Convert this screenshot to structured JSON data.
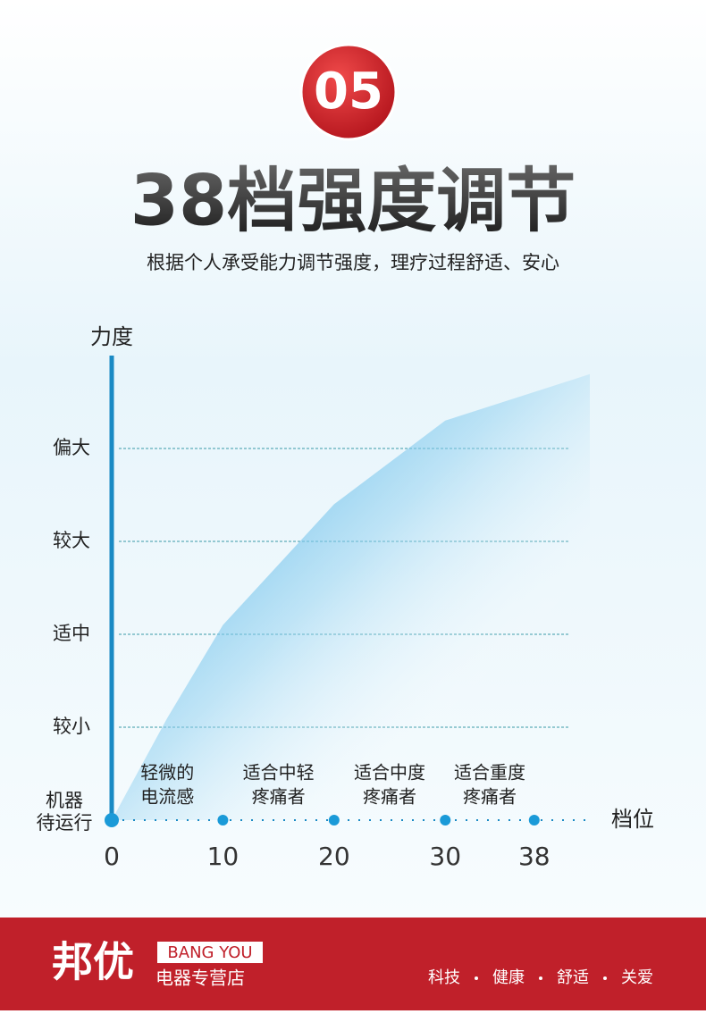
{
  "badge": "05",
  "title": "38档强度调节",
  "subtitle": "根据个人承受能力调节强度，理疗过程舒适、安心",
  "chart_data": {
    "type": "area",
    "y_label": "力度",
    "x_label": "档位",
    "x": [
      0,
      5,
      10,
      20,
      30,
      43
    ],
    "values": [
      0,
      1.1,
      2.1,
      3.4,
      4.3,
      4.8
    ],
    "color": "#4fb2e6",
    "xlim": [
      0,
      43
    ],
    "ylim": [
      0,
      5
    ],
    "xticks": [
      0,
      10,
      20,
      30,
      38
    ],
    "yticks": [
      {
        "value": 1,
        "label": "较小"
      },
      {
        "value": 2,
        "label": "适中"
      },
      {
        "value": 3,
        "label": "较大"
      },
      {
        "value": 4,
        "label": "偏大"
      }
    ],
    "grid": true,
    "origin_label": [
      "机器",
      "待运行"
    ],
    "annotations": [
      [
        "轻微的",
        "电流感"
      ],
      [
        "适合中轻",
        "疼痛者"
      ],
      [
        "适合中度",
        "疼痛者"
      ],
      [
        "适合重度",
        "疼痛者"
      ]
    ]
  },
  "footer": {
    "brand": "邦优",
    "brand_en": "BANG YOU",
    "store": "电器专营店",
    "slogan": [
      "科技",
      "健康",
      "舒适",
      "关爱"
    ]
  }
}
